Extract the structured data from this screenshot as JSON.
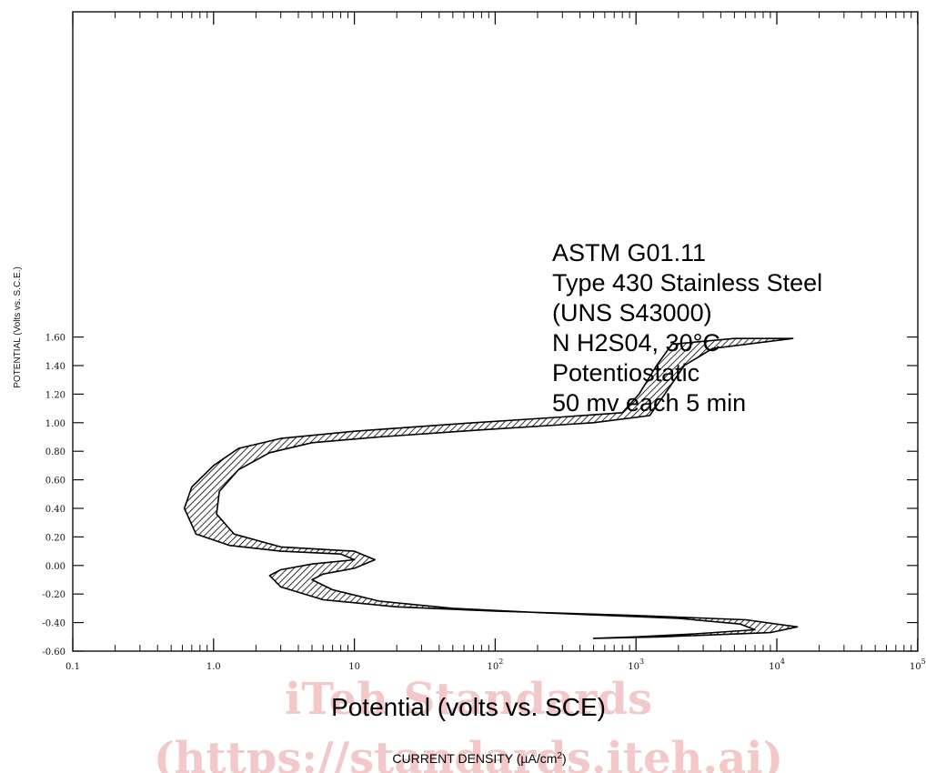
{
  "watermark": {
    "line1": "iTeh Standards",
    "line2": "(https://standards.iteh.ai)"
  },
  "chart_data": {
    "type": "area",
    "xscale": "log",
    "xlim": [
      0.1,
      100000
    ],
    "ylim": [
      -0.6,
      1.65
    ],
    "ylabel": "POTENTIAL (Volts vs. S.C.E.)",
    "xtitle": "Potential (volts vs. SCE)",
    "xlabel": "CURRENT DENSITY (µA/cm",
    "xlabel_sup": "2",
    "xlabel_close": ")",
    "grid": false,
    "fill_pattern": "diagonal hatch",
    "yticks": [
      {
        "value": -0.6,
        "label": "-0.60"
      },
      {
        "value": -0.4,
        "label": "-0.40"
      },
      {
        "value": -0.2,
        "label": "-0.20"
      },
      {
        "value": 0.0,
        "label": "0.00"
      },
      {
        "value": 0.2,
        "label": "0.20"
      },
      {
        "value": 0.4,
        "label": "0.40"
      },
      {
        "value": 0.6,
        "label": "0.60"
      },
      {
        "value": 0.8,
        "label": "0.80"
      },
      {
        "value": 1.0,
        "label": "1.00"
      },
      {
        "value": 1.2,
        "label": "1.20"
      },
      {
        "value": 1.4,
        "label": "1.40"
      },
      {
        "value": 1.6,
        "label": "1.60"
      }
    ],
    "xticks": [
      {
        "value": 0.1,
        "label": "0.1",
        "sup": ""
      },
      {
        "value": 1,
        "label": "1.0",
        "sup": ""
      },
      {
        "value": 10,
        "label": "10",
        "sup": ""
      },
      {
        "value": 100,
        "label": "10",
        "sup": "2"
      },
      {
        "value": 1000,
        "label": "10",
        "sup": "3"
      },
      {
        "value": 10000,
        "label": "10",
        "sup": "4"
      },
      {
        "value": 100000,
        "label": "10",
        "sup": "5"
      }
    ],
    "annotations": [
      "ASTM G01.11",
      "Type 430 Stainless Steel",
      "(UNS S43000)",
      "N H2S04, 30°C",
      "Potentiostatic",
      "50 mv each 5 min"
    ],
    "band": {
      "upper_edge": [
        {
          "x": 5000,
          "y": 1.59
        },
        {
          "x": 1800,
          "y": 1.55
        },
        {
          "x": 1400,
          "y": 1.4
        },
        {
          "x": 1050,
          "y": 1.2
        },
        {
          "x": 800,
          "y": 1.07
        },
        {
          "x": 300,
          "y": 1.04
        },
        {
          "x": 50,
          "y": 0.99
        },
        {
          "x": 10,
          "y": 0.94
        },
        {
          "x": 3,
          "y": 0.89
        },
        {
          "x": 1.5,
          "y": 0.82
        },
        {
          "x": 1.0,
          "y": 0.7
        },
        {
          "x": 0.7,
          "y": 0.55
        },
        {
          "x": 0.62,
          "y": 0.4
        },
        {
          "x": 0.75,
          "y": 0.22
        },
        {
          "x": 1.3,
          "y": 0.14
        },
        {
          "x": 3,
          "y": 0.1
        },
        {
          "x": 8,
          "y": 0.08
        },
        {
          "x": 10,
          "y": 0.04
        },
        {
          "x": 5,
          "y": 0.01
        },
        {
          "x": 3,
          "y": -0.03
        },
        {
          "x": 2.5,
          "y": -0.07
        },
        {
          "x": 3,
          "y": -0.15
        },
        {
          "x": 6,
          "y": -0.24
        },
        {
          "x": 20,
          "y": -0.29
        },
        {
          "x": 100,
          "y": -0.32
        },
        {
          "x": 1000,
          "y": -0.35
        },
        {
          "x": 6000,
          "y": -0.38
        },
        {
          "x": 14000,
          "y": -0.43
        },
        {
          "x": 9000,
          "y": -0.47
        },
        {
          "x": 1500,
          "y": -0.5
        },
        {
          "x": 500,
          "y": -0.51
        }
      ],
      "lower_edge": [
        {
          "x": 13000,
          "y": 1.59
        },
        {
          "x": 3500,
          "y": 1.52
        },
        {
          "x": 2200,
          "y": 1.4
        },
        {
          "x": 1600,
          "y": 1.2
        },
        {
          "x": 1250,
          "y": 1.05
        },
        {
          "x": 500,
          "y": 1.0
        },
        {
          "x": 80,
          "y": 0.95
        },
        {
          "x": 15,
          "y": 0.9
        },
        {
          "x": 5,
          "y": 0.86
        },
        {
          "x": 2.5,
          "y": 0.79
        },
        {
          "x": 1.5,
          "y": 0.67
        },
        {
          "x": 1.1,
          "y": 0.52
        },
        {
          "x": 1.05,
          "y": 0.36
        },
        {
          "x": 1.4,
          "y": 0.22
        },
        {
          "x": 3,
          "y": 0.13
        },
        {
          "x": 10,
          "y": 0.1
        },
        {
          "x": 14,
          "y": 0.04
        },
        {
          "x": 10,
          "y": -0.02
        },
        {
          "x": 6,
          "y": -0.06
        },
        {
          "x": 5,
          "y": -0.1
        },
        {
          "x": 7,
          "y": -0.17
        },
        {
          "x": 15,
          "y": -0.25
        },
        {
          "x": 50,
          "y": -0.3
        },
        {
          "x": 200,
          "y": -0.33
        },
        {
          "x": 2000,
          "y": -0.37
        },
        {
          "x": 5500,
          "y": -0.41
        },
        {
          "x": 7000,
          "y": -0.45
        },
        {
          "x": 2500,
          "y": -0.48
        },
        {
          "x": 1000,
          "y": -0.5
        },
        {
          "x": 500,
          "y": -0.51
        }
      ]
    }
  }
}
